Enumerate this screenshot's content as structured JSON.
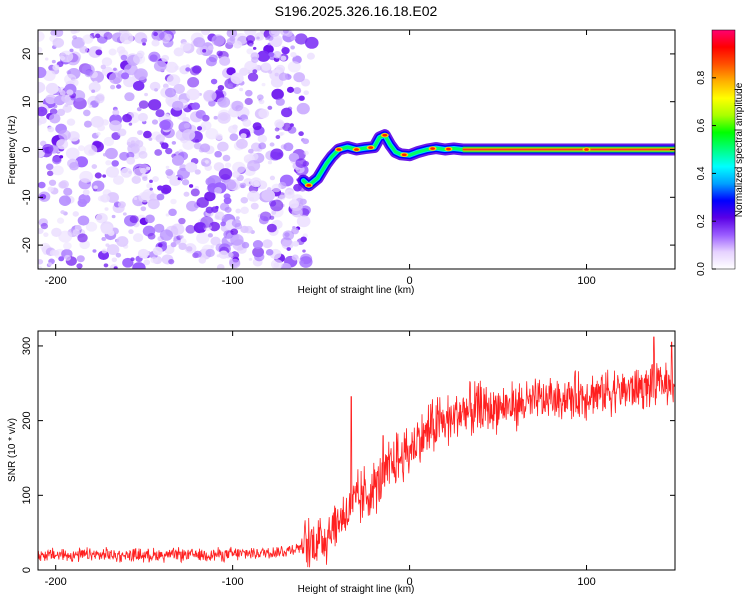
{
  "title": "S196.2025.326.16.18.E02",
  "chart_data": [
    {
      "type": "heatmap",
      "xlabel": "Height of straight line (km)",
      "ylabel": "Frequency (Hz)",
      "xlim": [
        -210,
        150
      ],
      "ylim": [
        -25,
        25
      ],
      "xticks": [
        -200,
        -100,
        0,
        100
      ],
      "yticks": [
        -20,
        -10,
        0,
        10,
        20
      ],
      "colorbar": {
        "label": "Normalized spectral amplitude",
        "range": [
          0,
          1
        ],
        "ticks": [
          "0.0",
          "0.2",
          "0.4",
          "0.6",
          "0.8"
        ],
        "colors": [
          "#ffffff",
          "#e6d2ff",
          "#9a5cff",
          "#5a00e6",
          "#0000ff",
          "#00a0ff",
          "#00ffff",
          "#00ff80",
          "#00ff00",
          "#aaff00",
          "#ffff00",
          "#ffb000",
          "#ff5000",
          "#ff0000",
          "#ff0070"
        ]
      },
      "noise_region": {
        "x_range": [
          -210,
          -58
        ],
        "description_level": 0.05
      },
      "signal_track": [
        [
          -60,
          -6.5
        ],
        [
          -57,
          -7.5
        ],
        [
          -52,
          -6
        ],
        [
          -47,
          -3
        ],
        [
          -44,
          -1.5
        ],
        [
          -40,
          0
        ],
        [
          -35,
          0.5
        ],
        [
          -30,
          0
        ],
        [
          -25,
          0.3
        ],
        [
          -20,
          0.5
        ],
        [
          -17,
          2.5
        ],
        [
          -14,
          3
        ],
        [
          -11,
          1
        ],
        [
          -8,
          -0.5
        ],
        [
          -5,
          -1
        ],
        [
          0,
          -1.2
        ],
        [
          5,
          -0.5
        ],
        [
          10,
          0
        ],
        [
          15,
          0.3
        ],
        [
          20,
          0
        ],
        [
          25,
          0.2
        ],
        [
          30,
          0
        ],
        [
          50,
          0
        ],
        [
          100,
          0
        ],
        [
          150,
          0
        ]
      ]
    },
    {
      "type": "line",
      "xlabel": "Height of straight line (km)",
      "ylabel": "SNR (10 * v/v)",
      "xlim": [
        -210,
        150
      ],
      "ylim": [
        0,
        320
      ],
      "xticks": [
        -200,
        -100,
        0,
        100
      ],
      "yticks": [
        0,
        100,
        200,
        300
      ],
      "series": [
        {
          "name": "SNR",
          "color": "#ff2020",
          "trend": [
            [
              -210,
              20
            ],
            [
              -150,
              20
            ],
            [
              -100,
              21
            ],
            [
              -70,
              25
            ],
            [
              -50,
              40
            ],
            [
              -40,
              65
            ],
            [
              -30,
              90
            ],
            [
              -20,
              110
            ],
            [
              -10,
              140
            ],
            [
              0,
              160
            ],
            [
              10,
              185
            ],
            [
              20,
              200
            ],
            [
              30,
              210
            ],
            [
              50,
              218
            ],
            [
              70,
              225
            ],
            [
              100,
              235
            ],
            [
              130,
              245
            ],
            [
              150,
              250
            ]
          ],
          "spikes": [
            [
              -33,
              232
            ],
            [
              -15,
              180
            ],
            [
              138,
              312
            ],
            [
              148,
              305
            ]
          ]
        }
      ]
    }
  ]
}
